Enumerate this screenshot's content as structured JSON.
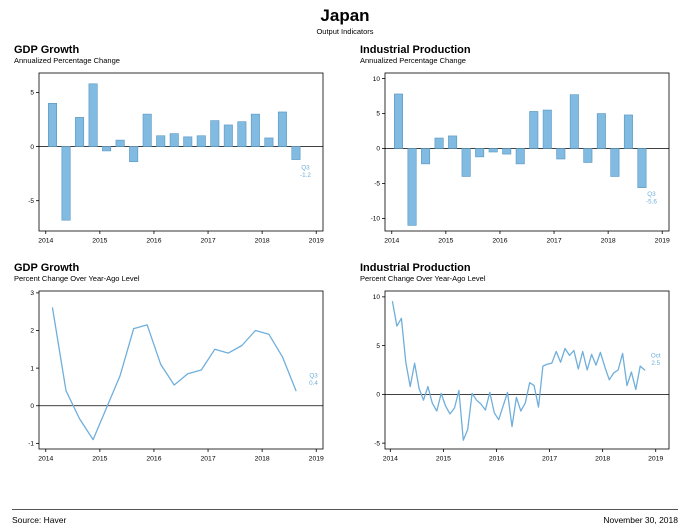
{
  "header": {
    "title": "Japan",
    "subtitle": "Output Indicators"
  },
  "footer": {
    "source": "Source: Haver",
    "date": "November 30, 2018"
  },
  "colors": {
    "bar_fill": "#82BBE2",
    "bar_stroke": "#5795BE",
    "line": "#6FAFDB",
    "annotation": "#6FAFDB",
    "axis": "#000000"
  },
  "chart_data": [
    {
      "type": "bar",
      "title": "GDP Growth",
      "subtitle": "Annualized Percentage Change",
      "x_start": 2014,
      "x_step": 0.25,
      "xlim": [
        2013.875,
        2019.125
      ],
      "xticks": [
        2014,
        2015,
        2016,
        2017,
        2018,
        2019
      ],
      "ylim": [
        -7.8,
        6.8
      ],
      "yticks": [
        -5,
        0,
        5
      ],
      "grid": false,
      "values": [
        4.0,
        -6.8,
        2.7,
        5.8,
        -0.4,
        0.6,
        -1.4,
        3.0,
        1.0,
        1.2,
        0.9,
        1.0,
        2.4,
        2.0,
        2.3,
        3.0,
        0.8,
        3.2,
        -1.2
      ],
      "annotation": {
        "lines": [
          "Q3",
          "-1.2"
        ],
        "x": 2018.8,
        "y": -2.1
      }
    },
    {
      "type": "bar",
      "title": "Industrial Production",
      "subtitle": "Annualized Percentage Change",
      "x_start": 2014,
      "x_step": 0.25,
      "xlim": [
        2013.875,
        2019.125
      ],
      "xticks": [
        2014,
        2015,
        2016,
        2017,
        2018,
        2019
      ],
      "ylim": [
        -11.8,
        10.8
      ],
      "yticks": [
        -10,
        -5,
        0,
        5,
        10
      ],
      "grid": false,
      "values": [
        7.8,
        -11.0,
        -2.2,
        1.5,
        1.8,
        -4.0,
        -1.2,
        -0.5,
        -0.8,
        -2.2,
        5.3,
        5.5,
        -1.5,
        7.7,
        -2.0,
        5.0,
        -4.0,
        4.8,
        -5.6
      ],
      "annotation": {
        "lines": [
          "Q3",
          "-5.6"
        ],
        "x": 2018.8,
        "y": -6.8
      }
    },
    {
      "type": "line",
      "title": "GDP Growth",
      "subtitle": "Percent Change Over Year-Ago Level",
      "x_start": 2014,
      "x_step": 0.25,
      "xlim": [
        2013.875,
        2019.125
      ],
      "xticks": [
        2014,
        2015,
        2016,
        2017,
        2018,
        2019
      ],
      "ylim": [
        -1.15,
        3.05
      ],
      "yticks": [
        -1,
        0,
        1,
        2,
        3
      ],
      "grid": false,
      "values": [
        2.6,
        0.4,
        -0.35,
        -0.9,
        -0.05,
        0.8,
        2.05,
        2.15,
        1.1,
        0.55,
        0.85,
        0.95,
        1.5,
        1.4,
        1.6,
        2.0,
        1.9,
        1.3,
        0.4
      ],
      "annotation": {
        "lines": [
          "Q3",
          "0.4"
        ],
        "x": 2018.95,
        "y": 0.75
      }
    },
    {
      "type": "line",
      "title": "Industrial Production",
      "subtitle": "Percent Change Over Year-Ago Level",
      "x_start": 2014,
      "x_step": 0.0833333,
      "xlim": [
        2013.9,
        2019.25
      ],
      "xticks": [
        2014,
        2015,
        2016,
        2017,
        2018,
        2019
      ],
      "ylim": [
        -5.6,
        10.6
      ],
      "yticks": [
        -5,
        0,
        5,
        10
      ],
      "grid": false,
      "values": [
        9.5,
        7.0,
        7.8,
        3.3,
        0.8,
        3.2,
        0.6,
        -0.6,
        0.8,
        -0.9,
        -1.7,
        0.1,
        -1.2,
        -2.0,
        -1.4,
        0.4,
        -4.7,
        -3.6,
        0.1,
        -0.6,
        -1.0,
        -1.6,
        0.2,
        -1.9,
        -2.6,
        -1.2,
        0.2,
        -3.3,
        -0.3,
        -1.7,
        -0.9,
        1.2,
        0.9,
        -1.3,
        2.9,
        3.1,
        3.2,
        4.4,
        3.3,
        4.7,
        4.0,
        4.5,
        2.6,
        4.4,
        2.5,
        4.1,
        3.0,
        4.3,
        2.8,
        1.5,
        2.2,
        2.5,
        4.2,
        0.9,
        2.3,
        0.5,
        2.9,
        2.5
      ],
      "annotation": {
        "lines": [
          "Oct",
          "2.5"
        ],
        "x": 2019.0,
        "y": 3.8
      }
    }
  ]
}
